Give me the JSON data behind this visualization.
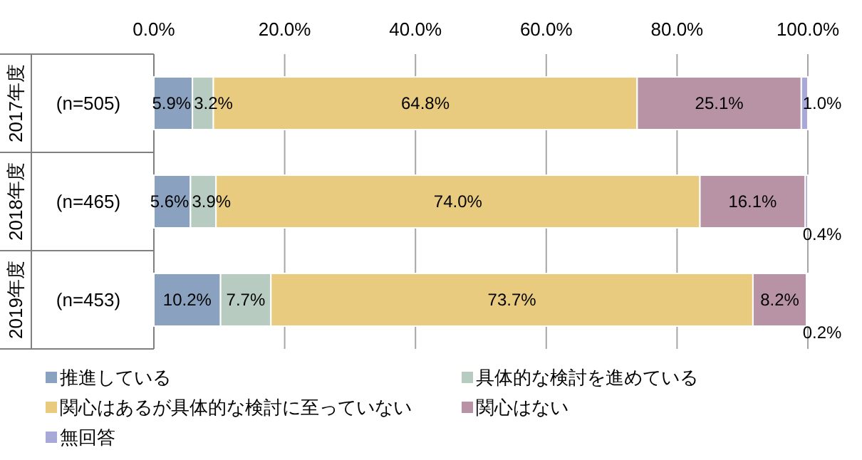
{
  "chart_data": {
    "type": "bar",
    "orientation": "horizontal",
    "stacked": true,
    "grid": "x",
    "legend": "bottom",
    "categories": [
      "2017年度 (n=505)",
      "2018年度 (n=465)",
      "2019年度 (n=453)"
    ],
    "xlim": [
      0,
      100
    ],
    "xticks": [
      {
        "value": 0,
        "label": "0.0%"
      },
      {
        "value": 20,
        "label": "20.0%"
      },
      {
        "value": 40,
        "label": "40.0%"
      },
      {
        "value": 60,
        "label": "60.0%"
      },
      {
        "value": 80,
        "label": "80.0%"
      },
      {
        "value": 100,
        "label": "100.0%"
      }
    ],
    "series": [
      {
        "name": "推進している",
        "color": "#8aa2bf",
        "values": [
          5.9,
          5.6,
          10.2
        ],
        "value_labels": [
          "5.9%",
          "5.6%",
          "10.2%"
        ]
      },
      {
        "name": "具体的な検討を進めている",
        "color": "#b7cbc1",
        "values": [
          3.2,
          3.9,
          7.7
        ],
        "value_labels": [
          "3.2%",
          "3.9%",
          "7.7%"
        ]
      },
      {
        "name": "関心はあるが具体的な検討に至っていない",
        "color": "#e8cb7e",
        "values": [
          64.8,
          74.0,
          73.7
        ],
        "value_labels": [
          "64.8%",
          "74.0%",
          "73.7%"
        ]
      },
      {
        "name": "関心はない",
        "color": "#b893a6",
        "values": [
          25.1,
          16.1,
          8.2
        ],
        "value_labels": [
          "25.1%",
          "16.1%",
          "8.2%"
        ]
      },
      {
        "name": "無回答",
        "color": "#a9a9d8",
        "values": [
          1.0,
          0.4,
          0.2
        ],
        "value_labels": [
          "1.0%",
          "0.4%",
          "0.2%"
        ]
      }
    ]
  }
}
